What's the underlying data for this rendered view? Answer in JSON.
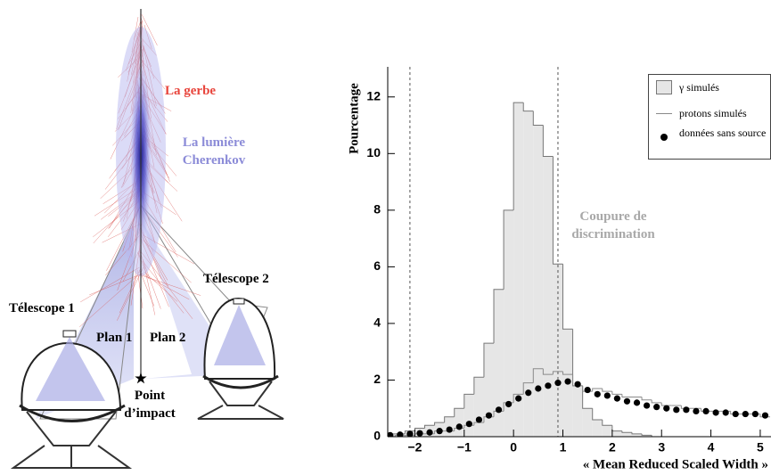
{
  "diagram": {
    "labels": {
      "shower": "La gerbe",
      "light": "La lumière Cherenkov",
      "telescope1": "Télescope 1",
      "telescope2": "Télescope 2",
      "plane1": "Plan 1",
      "plane2": "Plan 2",
      "impact": "Point d’impact"
    }
  },
  "chart_data": {
    "type": "histogram",
    "ylabel": "Pourcentage",
    "xlabel": "« Mean Reduced Scaled Width »",
    "annotation": "Coupure de discrimination",
    "bins": [
      -2.6,
      -2.4,
      -2.2,
      -2.0,
      -1.8,
      -1.6,
      -1.4,
      -1.2,
      -1.0,
      -0.8,
      -0.6,
      -0.4,
      -0.2,
      0.0,
      0.2,
      0.4,
      0.6,
      0.8,
      1.0,
      1.2,
      1.4,
      1.6,
      1.8,
      2.0,
      2.2,
      2.4,
      2.6,
      2.8,
      3.0,
      3.2,
      3.4,
      3.6,
      3.8,
      4.0,
      4.2,
      4.4,
      4.6,
      4.8,
      5.0,
      5.2
    ],
    "series": [
      {
        "name": "γ simulés",
        "color": "#e6e6e6",
        "style": "filled",
        "values": [
          0.1,
          0.1,
          0.2,
          0.3,
          0.4,
          0.5,
          0.7,
          1.0,
          1.5,
          2.1,
          3.3,
          5.2,
          8.0,
          11.8,
          11.5,
          11.0,
          9.9,
          6.1,
          3.8,
          1.8,
          1.0,
          0.6,
          0.4,
          0.2,
          0.15,
          0.1,
          0.05,
          0,
          0,
          0,
          0,
          0,
          0,
          0,
          0,
          0,
          0,
          0,
          0
        ]
      },
      {
        "name": "protons simulés",
        "color": "#8a8a8a",
        "style": "step",
        "values": [
          0,
          0.05,
          0.05,
          0.1,
          0.1,
          0.2,
          0.2,
          0.3,
          0.4,
          0.5,
          0.7,
          0.9,
          1.2,
          1.5,
          1.9,
          2.4,
          2.2,
          2.3,
          2.2,
          1.8,
          1.6,
          1.7,
          1.6,
          1.5,
          1.4,
          1.4,
          1.3,
          1.2,
          1.1,
          1.1,
          1.0,
          1.0,
          0.9,
          0.9,
          0.9,
          0.8,
          0.8,
          0.8,
          0.7
        ]
      },
      {
        "name": "données sans source",
        "color": "#000000",
        "style": "points",
        "x": [
          -2.5,
          -2.3,
          -2.1,
          -1.9,
          -1.7,
          -1.5,
          -1.3,
          -1.1,
          -0.9,
          -0.7,
          -0.5,
          -0.3,
          -0.1,
          0.1,
          0.3,
          0.5,
          0.7,
          0.9,
          1.1,
          1.3,
          1.5,
          1.7,
          1.9,
          2.1,
          2.3,
          2.5,
          2.7,
          2.9,
          3.1,
          3.3,
          3.5,
          3.7,
          3.9,
          4.1,
          4.3,
          4.5,
          4.7,
          4.9,
          5.1
        ],
        "values": [
          0.05,
          0.07,
          0.1,
          0.12,
          0.15,
          0.2,
          0.25,
          0.35,
          0.45,
          0.6,
          0.75,
          0.95,
          1.15,
          1.35,
          1.55,
          1.7,
          1.8,
          1.9,
          1.95,
          1.85,
          1.65,
          1.5,
          1.45,
          1.35,
          1.25,
          1.2,
          1.1,
          1.05,
          1.0,
          0.95,
          0.95,
          0.9,
          0.9,
          0.85,
          0.85,
          0.8,
          0.8,
          0.8,
          0.75
        ]
      }
    ],
    "cuts": [
      -2.1,
      0.9
    ],
    "xlim": [
      -2.55,
      5.2
    ],
    "ylim": [
      0,
      13
    ],
    "xticks": [
      {
        "value": -2,
        "label": "−2"
      },
      {
        "value": -1,
        "label": "−1"
      },
      0,
      1,
      2,
      3,
      4,
      5
    ],
    "yticks": [
      0,
      2,
      4,
      6,
      8,
      10,
      12
    ]
  }
}
